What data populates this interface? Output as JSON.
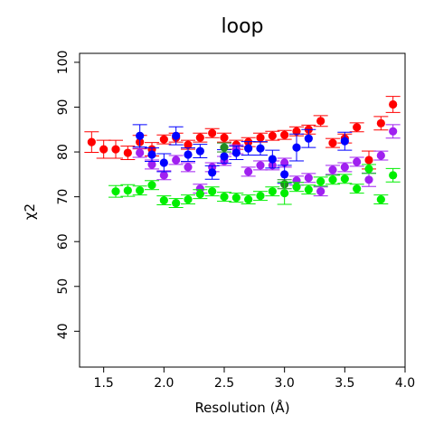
{
  "chart_data": {
    "type": "scatter",
    "title": "loop",
    "xlabel": "Resolution (Å)",
    "ylabel": "χ2",
    "xlim": [
      1.3,
      4.0
    ],
    "ylim": [
      32,
      102
    ],
    "xticks": [
      1.5,
      2.0,
      2.5,
      3.0,
      3.5,
      4.0
    ],
    "xtick_labels": [
      "1.5",
      "2.0",
      "2.5",
      "3.0",
      "3.5",
      "4.0"
    ],
    "yticks": [
      40,
      50,
      60,
      70,
      80,
      90,
      100
    ],
    "ytick_labels": [
      "40",
      "50",
      "60",
      "70",
      "80",
      "90",
      "100"
    ],
    "grid": false,
    "series": [
      {
        "color": "#ff0000",
        "points": [
          {
            "x": 1.4,
            "y": 82.2,
            "err": 2.3
          },
          {
            "x": 1.5,
            "y": 80.6,
            "err": 2.0
          },
          {
            "x": 1.6,
            "y": 80.6,
            "err": 2.0
          },
          {
            "x": 1.7,
            "y": 79.8,
            "err": 1.5
          },
          {
            "x": 1.8,
            "y": 82.2,
            "err": 1.5
          },
          {
            "x": 1.9,
            "y": 80.6,
            "err": 1.5
          },
          {
            "x": 2.0,
            "y": 82.8,
            "err": 1.0
          },
          {
            "x": 2.1,
            "y": 83.2,
            "err": 1.0
          },
          {
            "x": 2.2,
            "y": 81.6,
            "err": 1.0
          },
          {
            "x": 2.3,
            "y": 83.2,
            "err": 1.0
          },
          {
            "x": 2.4,
            "y": 84.2,
            "err": 1.0
          },
          {
            "x": 2.5,
            "y": 83.2,
            "err": 1.0
          },
          {
            "x": 2.6,
            "y": 81.6,
            "err": 1.0
          },
          {
            "x": 2.7,
            "y": 82.2,
            "err": 1.0
          },
          {
            "x": 2.8,
            "y": 83.2,
            "err": 1.0
          },
          {
            "x": 2.9,
            "y": 83.6,
            "err": 1.0
          },
          {
            "x": 3.0,
            "y": 83.8,
            "err": 1.0
          },
          {
            "x": 3.1,
            "y": 84.6,
            "err": 1.0
          },
          {
            "x": 3.2,
            "y": 85.0,
            "err": 1.0
          },
          {
            "x": 3.3,
            "y": 86.9,
            "err": 1.2
          },
          {
            "x": 3.4,
            "y": 82.0,
            "err": 1.0
          },
          {
            "x": 3.5,
            "y": 83.0,
            "err": 1.0
          },
          {
            "x": 3.6,
            "y": 85.5,
            "err": 1.0
          },
          {
            "x": 3.7,
            "y": 78.2,
            "err": 2.0
          },
          {
            "x": 3.8,
            "y": 86.4,
            "err": 1.5
          },
          {
            "x": 3.9,
            "y": 90.6,
            "err": 1.8
          }
        ]
      },
      {
        "color": "#a020f0",
        "points": [
          {
            "x": 1.8,
            "y": 79.8,
            "err": 1.0
          },
          {
            "x": 1.9,
            "y": 77.2,
            "err": 1.0
          },
          {
            "x": 2.0,
            "y": 74.8,
            "err": 1.0
          },
          {
            "x": 2.1,
            "y": 78.2,
            "err": 1.0
          },
          {
            "x": 2.2,
            "y": 76.6,
            "err": 1.0
          },
          {
            "x": 2.3,
            "y": 71.8,
            "err": 1.0
          },
          {
            "x": 2.4,
            "y": 76.6,
            "err": 1.0
          },
          {
            "x": 2.5,
            "y": 78.0,
            "err": 1.0
          },
          {
            "x": 2.6,
            "y": 80.6,
            "err": 1.0
          },
          {
            "x": 2.7,
            "y": 75.6,
            "err": 1.0
          },
          {
            "x": 2.8,
            "y": 77.0,
            "err": 1.0
          },
          {
            "x": 2.9,
            "y": 77.0,
            "err": 1.0
          },
          {
            "x": 3.0,
            "y": 77.6,
            "err": 1.0
          },
          {
            "x": 3.1,
            "y": 73.6,
            "err": 1.0
          },
          {
            "x": 3.2,
            "y": 74.2,
            "err": 1.0
          },
          {
            "x": 3.3,
            "y": 71.2,
            "err": 1.0
          },
          {
            "x": 3.4,
            "y": 76.0,
            "err": 1.0
          },
          {
            "x": 3.5,
            "y": 76.6,
            "err": 1.0
          },
          {
            "x": 3.6,
            "y": 77.8,
            "err": 1.0
          },
          {
            "x": 3.7,
            "y": 73.8,
            "err": 1.5
          },
          {
            "x": 3.8,
            "y": 79.2,
            "err": 1.0
          },
          {
            "x": 3.9,
            "y": 84.6,
            "err": 1.5
          }
        ]
      },
      {
        "color": "#0000ff",
        "points": [
          {
            "x": 1.8,
            "y": 83.6,
            "err": 2.5
          },
          {
            "x": 1.9,
            "y": 79.4,
            "err": 1.5
          },
          {
            "x": 2.0,
            "y": 77.6,
            "err": 2.0
          },
          {
            "x": 2.1,
            "y": 83.6,
            "err": 2.0
          },
          {
            "x": 2.2,
            "y": 79.4,
            "err": 1.5
          },
          {
            "x": 2.3,
            "y": 80.2,
            "err": 1.5
          },
          {
            "x": 2.4,
            "y": 75.4,
            "err": 1.5
          },
          {
            "x": 2.5,
            "y": 79.0,
            "err": 1.5
          },
          {
            "x": 2.6,
            "y": 79.8,
            "err": 1.5
          },
          {
            "x": 2.7,
            "y": 80.8,
            "err": 1.5
          },
          {
            "x": 2.8,
            "y": 80.8,
            "err": 1.5
          },
          {
            "x": 2.9,
            "y": 78.4,
            "err": 2.0
          },
          {
            "x": 3.0,
            "y": 75.0,
            "err": 2.0
          },
          {
            "x": 3.1,
            "y": 81.0,
            "err": 3.0
          },
          {
            "x": 3.2,
            "y": 83.0,
            "err": 2.0
          },
          {
            "x": 3.5,
            "y": 82.4,
            "err": 2.0
          }
        ]
      },
      {
        "color": "#228b22",
        "points": [
          {
            "x": 2.5,
            "y": 81.0,
            "err": 1.0
          },
          {
            "x": 3.0,
            "y": 72.8,
            "err": 1.0
          }
        ]
      },
      {
        "color": "#00ee00",
        "points": [
          {
            "x": 1.6,
            "y": 71.2,
            "err": 1.3
          },
          {
            "x": 1.7,
            "y": 71.4,
            "err": 1.3
          },
          {
            "x": 1.8,
            "y": 71.4,
            "err": 1.0
          },
          {
            "x": 1.9,
            "y": 72.6,
            "err": 1.0
          },
          {
            "x": 2.0,
            "y": 69.2,
            "err": 1.0
          },
          {
            "x": 2.1,
            "y": 68.6,
            "err": 1.0
          },
          {
            "x": 2.2,
            "y": 69.4,
            "err": 1.0
          },
          {
            "x": 2.3,
            "y": 70.6,
            "err": 1.0
          },
          {
            "x": 2.4,
            "y": 71.2,
            "err": 1.0
          },
          {
            "x": 2.5,
            "y": 70.0,
            "err": 1.0
          },
          {
            "x": 2.6,
            "y": 69.8,
            "err": 1.0
          },
          {
            "x": 2.7,
            "y": 69.4,
            "err": 1.0
          },
          {
            "x": 2.8,
            "y": 70.2,
            "err": 1.0
          },
          {
            "x": 2.9,
            "y": 71.2,
            "err": 1.0
          },
          {
            "x": 3.0,
            "y": 70.8,
            "err": 2.5
          },
          {
            "x": 3.1,
            "y": 72.2,
            "err": 1.0
          },
          {
            "x": 3.2,
            "y": 71.6,
            "err": 1.0
          },
          {
            "x": 3.3,
            "y": 73.4,
            "err": 1.0
          },
          {
            "x": 3.4,
            "y": 73.8,
            "err": 1.0
          },
          {
            "x": 3.5,
            "y": 74.0,
            "err": 1.0
          },
          {
            "x": 3.6,
            "y": 71.8,
            "err": 1.0
          },
          {
            "x": 3.7,
            "y": 76.2,
            "err": 1.0
          },
          {
            "x": 3.8,
            "y": 69.4,
            "err": 1.0
          },
          {
            "x": 3.9,
            "y": 74.8,
            "err": 1.5
          }
        ]
      }
    ]
  }
}
